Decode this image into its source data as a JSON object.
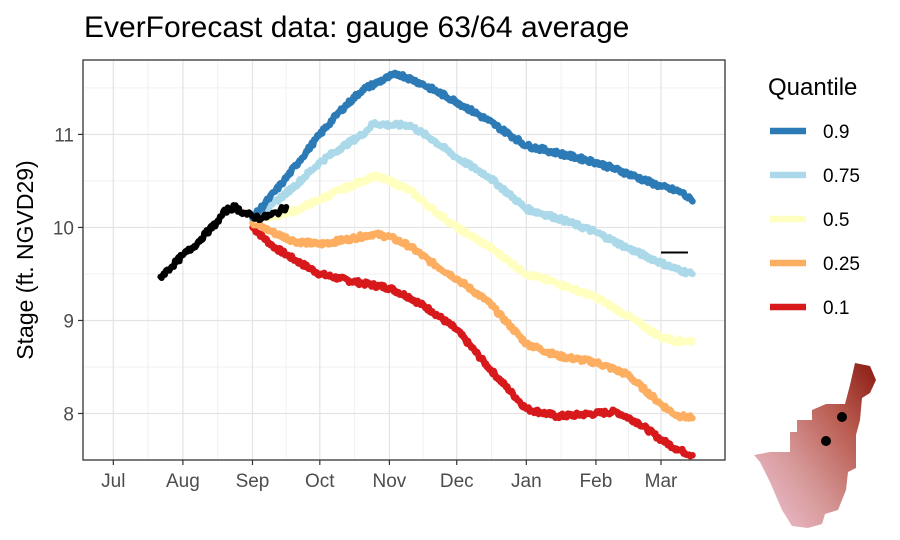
{
  "chart_data": {
    "type": "line",
    "title": "EverForecast data: gauge 63/64 average",
    "xlabel": "",
    "ylabel": "Stage (ft. NGVD29)",
    "x_ticks": [
      "Jul",
      "Aug",
      "Sep",
      "Oct",
      "Nov",
      "Dec",
      "Jan",
      "Feb",
      "Mar"
    ],
    "y_ticks": [
      8,
      9,
      10,
      11
    ],
    "ylim": [
      7.5,
      11.8
    ],
    "grid": true,
    "legend": {
      "title": "Quantile",
      "position": "right"
    },
    "observed": {
      "color": "#000000",
      "points": [
        [
          "2023-07-22",
          9.47
        ],
        [
          "2023-07-27",
          9.58
        ],
        [
          "2023-08-01",
          9.7
        ],
        [
          "2023-08-06",
          9.8
        ],
        [
          "2023-08-11",
          9.93
        ],
        [
          "2023-08-16",
          10.05
        ],
        [
          "2023-08-20",
          10.18
        ],
        [
          "2023-08-24",
          10.22
        ],
        [
          "2023-08-28",
          10.16
        ],
        [
          "2023-09-01",
          10.12
        ],
        [
          "2023-09-05",
          10.1
        ],
        [
          "2023-09-09",
          10.13
        ],
        [
          "2023-09-12",
          10.16
        ],
        [
          "2023-09-16",
          10.22
        ]
      ]
    },
    "reference_segment": {
      "color": "#000000",
      "x": [
        "2024-03-01",
        "2024-03-13"
      ],
      "y": 9.73
    },
    "series": [
      {
        "name": "0.9",
        "color": "#2c7bb6",
        "points": [
          [
            "2023-09-01",
            10.1
          ],
          [
            "2023-09-08",
            10.3
          ],
          [
            "2023-09-15",
            10.5
          ],
          [
            "2023-09-22",
            10.72
          ],
          [
            "2023-10-01",
            11.0
          ],
          [
            "2023-10-10",
            11.25
          ],
          [
            "2023-10-20",
            11.48
          ],
          [
            "2023-11-01",
            11.62
          ],
          [
            "2023-11-05",
            11.65
          ],
          [
            "2023-11-15",
            11.55
          ],
          [
            "2023-12-01",
            11.35
          ],
          [
            "2023-12-15",
            11.15
          ],
          [
            "2024-01-01",
            10.88
          ],
          [
            "2024-01-15",
            10.8
          ],
          [
            "2024-02-01",
            10.7
          ],
          [
            "2024-02-15",
            10.58
          ],
          [
            "2024-03-01",
            10.44
          ],
          [
            "2024-03-10",
            10.38
          ],
          [
            "2024-03-15",
            10.28
          ]
        ]
      },
      {
        "name": "0.75",
        "color": "#abd9e9",
        "points": [
          [
            "2023-09-01",
            10.1
          ],
          [
            "2023-09-10",
            10.25
          ],
          [
            "2023-09-20",
            10.45
          ],
          [
            "2023-10-01",
            10.7
          ],
          [
            "2023-10-10",
            10.85
          ],
          [
            "2023-10-20",
            11.0
          ],
          [
            "2023-10-25",
            11.12
          ],
          [
            "2023-11-01",
            11.1
          ],
          [
            "2023-11-10",
            11.1
          ],
          [
            "2023-11-20",
            10.95
          ],
          [
            "2023-12-01",
            10.75
          ],
          [
            "2023-12-15",
            10.55
          ],
          [
            "2024-01-01",
            10.2
          ],
          [
            "2024-01-15",
            10.1
          ],
          [
            "2024-02-01",
            9.95
          ],
          [
            "2024-02-15",
            9.78
          ],
          [
            "2024-03-01",
            9.62
          ],
          [
            "2024-03-08",
            9.55
          ],
          [
            "2024-03-15",
            9.5
          ]
        ]
      },
      {
        "name": "0.5",
        "color": "#ffffbf",
        "points": [
          [
            "2023-09-01",
            10.1
          ],
          [
            "2023-09-10",
            10.12
          ],
          [
            "2023-09-20",
            10.18
          ],
          [
            "2023-10-01",
            10.3
          ],
          [
            "2023-10-10",
            10.4
          ],
          [
            "2023-10-20",
            10.5
          ],
          [
            "2023-10-25",
            10.55
          ],
          [
            "2023-11-01",
            10.5
          ],
          [
            "2023-11-10",
            10.4
          ],
          [
            "2023-11-20",
            10.2
          ],
          [
            "2023-12-01",
            10.0
          ],
          [
            "2023-12-15",
            9.8
          ],
          [
            "2024-01-01",
            9.5
          ],
          [
            "2024-01-15",
            9.4
          ],
          [
            "2024-02-01",
            9.25
          ],
          [
            "2024-02-15",
            9.05
          ],
          [
            "2024-03-01",
            8.82
          ],
          [
            "2024-03-08",
            8.78
          ],
          [
            "2024-03-15",
            8.78
          ]
        ]
      },
      {
        "name": "0.25",
        "color": "#fdae61",
        "points": [
          [
            "2023-09-01",
            10.05
          ],
          [
            "2023-09-10",
            9.95
          ],
          [
            "2023-09-20",
            9.85
          ],
          [
            "2023-10-01",
            9.82
          ],
          [
            "2023-10-15",
            9.88
          ],
          [
            "2023-10-25",
            9.93
          ],
          [
            "2023-11-01",
            9.9
          ],
          [
            "2023-11-10",
            9.8
          ],
          [
            "2023-11-20",
            9.62
          ],
          [
            "2023-12-01",
            9.45
          ],
          [
            "2023-12-15",
            9.2
          ],
          [
            "2024-01-01",
            8.75
          ],
          [
            "2024-01-15",
            8.62
          ],
          [
            "2024-02-01",
            8.55
          ],
          [
            "2024-02-15",
            8.42
          ],
          [
            "2024-03-01",
            8.1
          ],
          [
            "2024-03-08",
            7.98
          ],
          [
            "2024-03-15",
            7.95
          ]
        ]
      },
      {
        "name": "0.1",
        "color": "#d7191c",
        "points": [
          [
            "2023-09-01",
            10.0
          ],
          [
            "2023-09-10",
            9.8
          ],
          [
            "2023-09-20",
            9.65
          ],
          [
            "2023-10-01",
            9.5
          ],
          [
            "2023-10-10",
            9.45
          ],
          [
            "2023-10-20",
            9.4
          ],
          [
            "2023-11-01",
            9.35
          ],
          [
            "2023-11-10",
            9.25
          ],
          [
            "2023-11-20",
            9.1
          ],
          [
            "2023-12-01",
            8.9
          ],
          [
            "2023-12-15",
            8.5
          ],
          [
            "2024-01-01",
            8.05
          ],
          [
            "2024-01-15",
            7.97
          ],
          [
            "2024-02-01",
            8.0
          ],
          [
            "2024-02-10",
            8.02
          ],
          [
            "2024-02-20",
            7.9
          ],
          [
            "2024-03-01",
            7.72
          ],
          [
            "2024-03-08",
            7.62
          ],
          [
            "2024-03-15",
            7.55
          ]
        ]
      }
    ]
  },
  "inset_map": {
    "gradient": [
      "#f1c6da",
      "#d79a9a",
      "#b85a4e",
      "#8a1a12"
    ],
    "marker_color": "#000000"
  }
}
